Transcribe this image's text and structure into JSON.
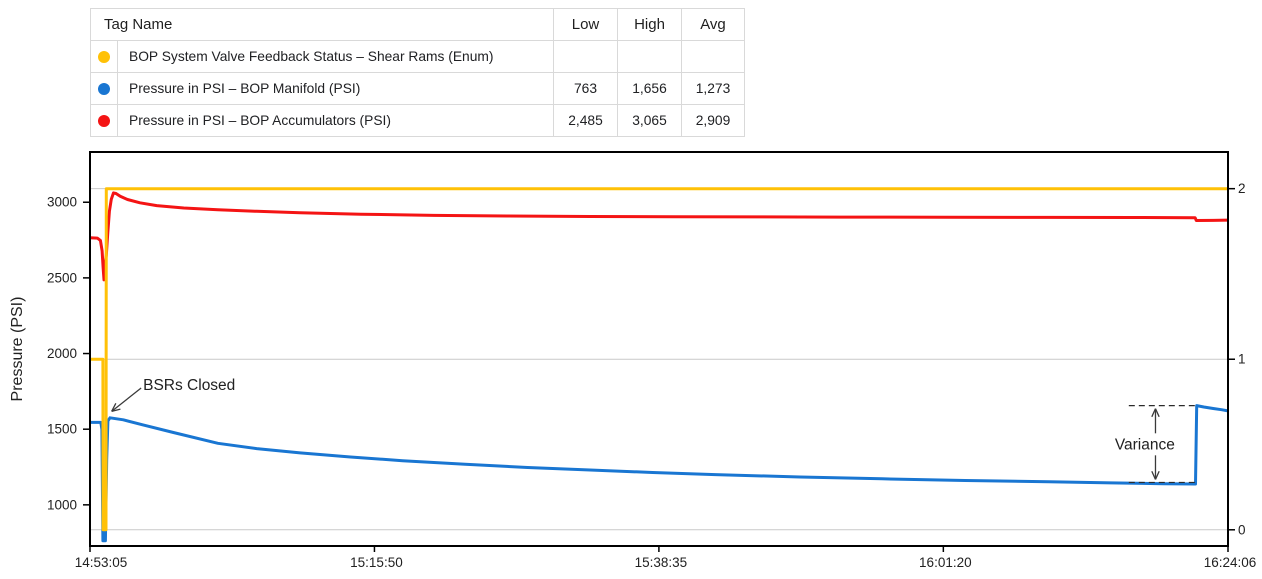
{
  "table": {
    "headers": {
      "tag_name": "Tag Name",
      "low": "Low",
      "high": "High",
      "avg": "Avg"
    },
    "rows": [
      {
        "color": "#FFC107",
        "name": "BOP System Valve Feedback Status – Shear Rams (Enum)",
        "low": "",
        "high": "",
        "avg": ""
      },
      {
        "color": "#1976D2",
        "name": "Pressure in PSI – BOP Manifold (PSI)",
        "low": "763",
        "high": "1,656",
        "avg": "1,273"
      },
      {
        "color": "#F41414",
        "name": "Pressure in PSI – BOP Accumulators (PSI)",
        "low": "2,485",
        "high": "3,065",
        "avg": "2,909"
      }
    ]
  },
  "chart_data": {
    "type": "line",
    "title": "",
    "legend": "table",
    "grid": "horizontal-on-right-axis-ticks",
    "x_axis": {
      "label": "",
      "range_s": [
        0,
        5461
      ],
      "ticks": [
        {
          "t": 0,
          "label": "14:53:05"
        },
        {
          "t": 1365,
          "label": "15:15:50"
        },
        {
          "t": 2730,
          "label": "15:38:35"
        },
        {
          "t": 4095,
          "label": "16:01:20"
        },
        {
          "t": 5461,
          "label": "16:24:06"
        }
      ]
    },
    "left_axis": {
      "label": "Pressure (PSI)",
      "ticks": [
        1000,
        1500,
        2000,
        2500,
        3000
      ],
      "lim": [
        728,
        3332
      ]
    },
    "right_axis": {
      "label": "",
      "ticks": [
        0,
        1,
        2
      ],
      "lim": [
        -0.095,
        2.215
      ]
    },
    "series": [
      {
        "id": "shear-rams",
        "name": "BOP System Valve Feedback Status – Shear Rams",
        "unit": "Enum",
        "axis": "right",
        "color": "#FFC107",
        "points": [
          [
            0,
            1
          ],
          [
            62,
            1
          ],
          [
            63,
            0
          ],
          [
            77,
            0
          ],
          [
            78,
            2
          ],
          [
            5461,
            2
          ]
        ]
      },
      {
        "id": "bop-manifold",
        "name": "Pressure in PSI – BOP Manifold",
        "unit": "PSI",
        "axis": "left",
        "color": "#1976D2",
        "points": [
          [
            0,
            1545
          ],
          [
            52,
            1545
          ],
          [
            57,
            1500
          ],
          [
            62,
            763
          ],
          [
            74,
            763
          ],
          [
            80,
            1300
          ],
          [
            86,
            1555
          ],
          [
            96,
            1575
          ],
          [
            160,
            1562
          ],
          [
            250,
            1530
          ],
          [
            400,
            1478
          ],
          [
            614,
            1407
          ],
          [
            800,
            1372
          ],
          [
            1008,
            1343
          ],
          [
            1250,
            1316
          ],
          [
            1500,
            1292
          ],
          [
            1800,
            1268
          ],
          [
            2100,
            1247
          ],
          [
            2400,
            1230
          ],
          [
            2700,
            1214
          ],
          [
            3000,
            1200
          ],
          [
            3407,
            1184
          ],
          [
            3800,
            1172
          ],
          [
            4200,
            1161
          ],
          [
            4600,
            1152
          ],
          [
            4900,
            1145
          ],
          [
            5150,
            1140
          ],
          [
            5305,
            1138
          ],
          [
            5311,
            1656
          ],
          [
            5345,
            1647
          ],
          [
            5390,
            1637
          ],
          [
            5430,
            1629
          ],
          [
            5461,
            1621
          ]
        ]
      },
      {
        "id": "bop-accumulators",
        "name": "Pressure in PSI – BOP Accumulators",
        "unit": "PSI",
        "axis": "left",
        "color": "#F41414",
        "points": [
          [
            0,
            2765
          ],
          [
            35,
            2763
          ],
          [
            50,
            2748
          ],
          [
            58,
            2680
          ],
          [
            63,
            2570
          ],
          [
            67,
            2487
          ],
          [
            71,
            2565
          ],
          [
            78,
            2650
          ],
          [
            85,
            2790
          ],
          [
            93,
            2940
          ],
          [
            102,
            3020
          ],
          [
            113,
            3062
          ],
          [
            125,
            3058
          ],
          [
            145,
            3040
          ],
          [
            180,
            3018
          ],
          [
            240,
            2996
          ],
          [
            320,
            2978
          ],
          [
            450,
            2962
          ],
          [
            614,
            2950
          ],
          [
            800,
            2940
          ],
          [
            1008,
            2931
          ],
          [
            1300,
            2921
          ],
          [
            1650,
            2913
          ],
          [
            2000,
            2909
          ],
          [
            2400,
            2906
          ],
          [
            2800,
            2904
          ],
          [
            3200,
            2903
          ],
          [
            3600,
            2902
          ],
          [
            4100,
            2901
          ],
          [
            4600,
            2900
          ],
          [
            5000,
            2899
          ],
          [
            5303,
            2898
          ],
          [
            5309,
            2879
          ],
          [
            5390,
            2880
          ],
          [
            5461,
            2882
          ]
        ]
      }
    ],
    "annotations": {
      "bsrs_closed": {
        "text": "BSRs Closed",
        "text_t": 255,
        "text_v": 1792,
        "arrow_tip_t": 104,
        "arrow_tip_v": 1618
      },
      "variance": {
        "text": "Variance",
        "t_from": 4985,
        "t_to": 5305,
        "upper_v": 1656,
        "lower_v": 1148,
        "arrow_t": 5113,
        "label_t": 5062,
        "label_v": 1400
      }
    }
  }
}
